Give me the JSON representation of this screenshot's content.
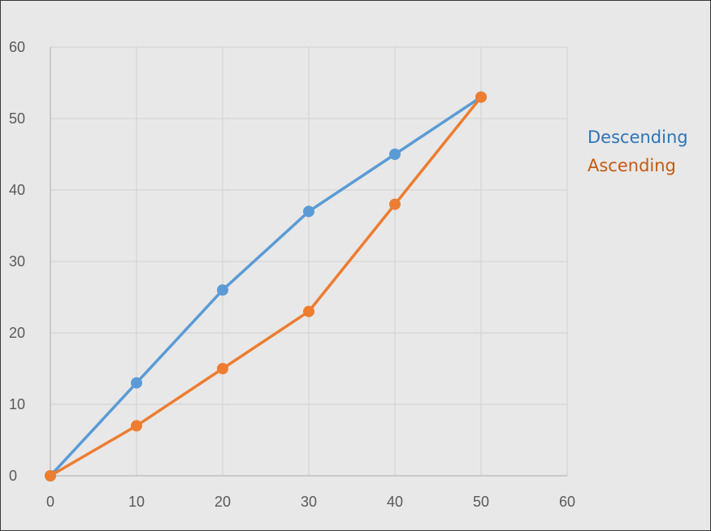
{
  "chart_data": {
    "type": "scatter",
    "mode": "lines+markers",
    "title": "",
    "xlabel": "",
    "ylabel": "",
    "xlim": [
      0,
      60
    ],
    "ylim": [
      0,
      60
    ],
    "x_ticks": [
      "0",
      "10",
      "20",
      "30",
      "40",
      "50",
      "60"
    ],
    "y_ticks": [
      "0",
      "10",
      "20",
      "30",
      "40",
      "50",
      "60"
    ],
    "grid": true,
    "legend_position": "right",
    "series": [
      {
        "name": "Descending",
        "color": "#5b9bd5",
        "x": [
          0,
          10,
          20,
          30,
          40,
          50
        ],
        "y": [
          0,
          13,
          26,
          37,
          45,
          53
        ]
      },
      {
        "name": "Ascending",
        "color": "#ed7d31",
        "x": [
          0,
          10,
          20,
          30,
          40,
          50
        ],
        "y": [
          0,
          7,
          15,
          23,
          38,
          53
        ]
      }
    ],
    "colors": {
      "background": "#e8e8e8",
      "gridline": "#d4d4d4",
      "axis": "#bfbfbf",
      "tick_label": "#595959",
      "legend_descending": "#2e75b6",
      "legend_ascending": "#c55a11"
    }
  }
}
